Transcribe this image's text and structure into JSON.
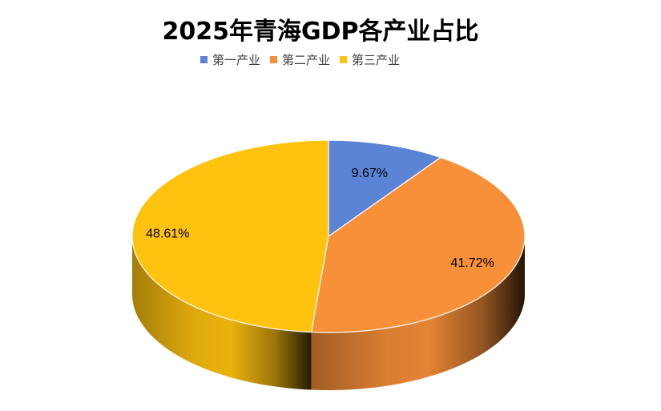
{
  "chart_data": {
    "type": "pie",
    "title": "2025年青海GDP各产业占比",
    "categories": [
      "第一产业",
      "第二产业",
      "第三产业"
    ],
    "values": [
      9.67,
      41.72,
      48.61
    ],
    "labels": [
      "9.67%",
      "41.72%",
      "48.61%"
    ],
    "colors": [
      "#5B83D6",
      "#F89039",
      "#FFC20E"
    ],
    "legend_position": "top",
    "style": "3d"
  }
}
